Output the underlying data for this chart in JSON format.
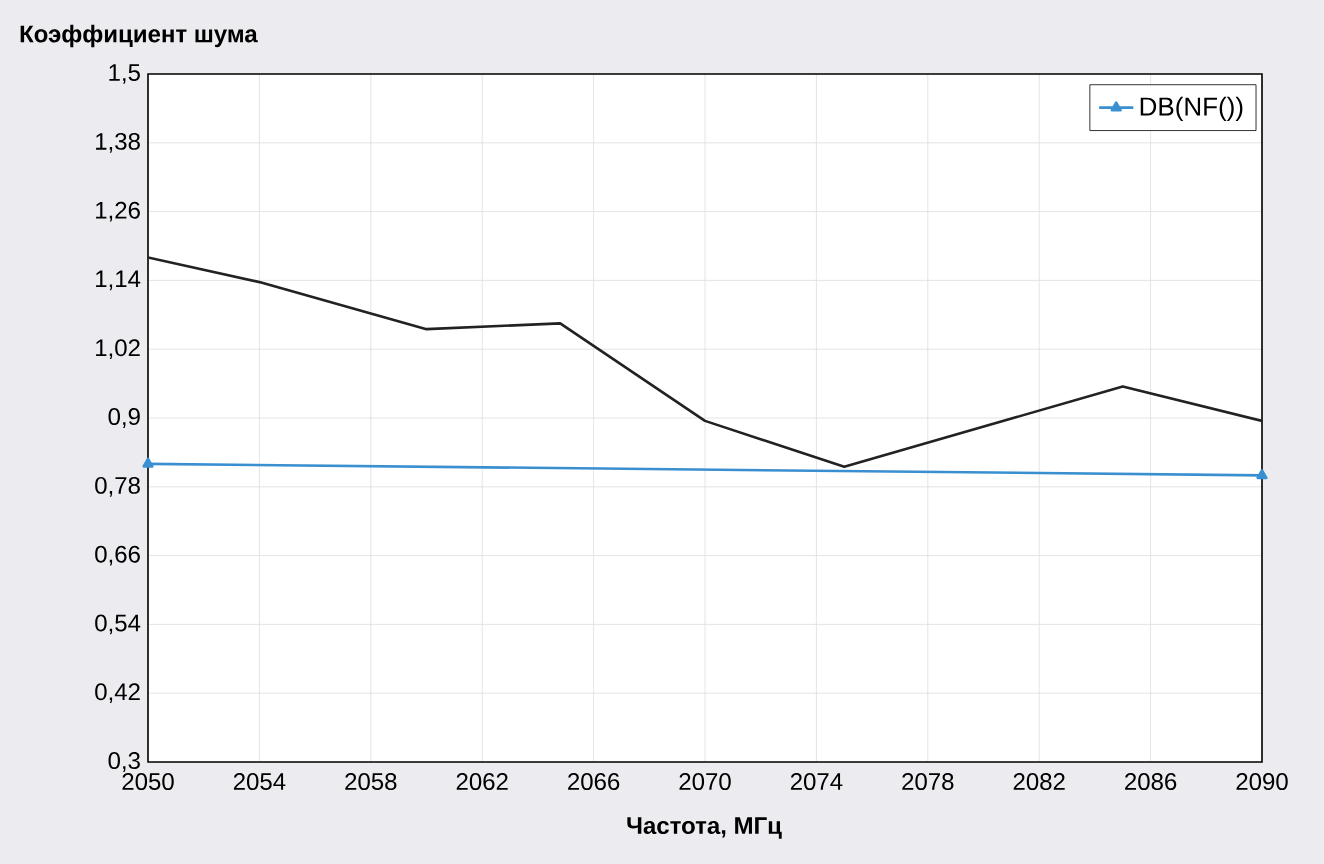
{
  "chart_data": {
    "type": "line",
    "xlabel": "Частота, МГц",
    "ylabel": "Коэффициент шума",
    "xlim": [
      2050,
      2090
    ],
    "xticks": [
      2050,
      2054,
      2058,
      2062,
      2066,
      2070,
      2074,
      2078,
      2082,
      2086,
      2090
    ],
    "ylim": [
      0.3,
      1.5
    ],
    "yticks": [
      {
        "value": 0.3,
        "label": "0,3"
      },
      {
        "value": 0.42,
        "label": "0,42"
      },
      {
        "value": 0.54,
        "label": "0,54"
      },
      {
        "value": 0.66,
        "label": "0,66"
      },
      {
        "value": 0.78,
        "label": "0,78"
      },
      {
        "value": 0.9,
        "label": "0,9"
      },
      {
        "value": 1.02,
        "label": "1,02"
      },
      {
        "value": 1.14,
        "label": "1,14"
      },
      {
        "value": 1.26,
        "label": "1,26"
      },
      {
        "value": 1.38,
        "label": "1,38"
      },
      {
        "value": 1.5,
        "label": "1,5"
      }
    ],
    "grid": true,
    "legend": "top right",
    "series": [
      {
        "color": "#222222",
        "x": [
          2050,
          2054,
          2060,
          2064.8,
          2070,
          2075,
          2085,
          2090
        ],
        "values": [
          1.18,
          1.137,
          1.055,
          1.065,
          0.895,
          0.815,
          0.955,
          0.895
        ]
      },
      {
        "name": "DB(NF())",
        "color": "#3a8fd0",
        "marker": "triangle",
        "x": [
          2050,
          2090
        ],
        "values": [
          0.82,
          0.8
        ]
      }
    ]
  }
}
